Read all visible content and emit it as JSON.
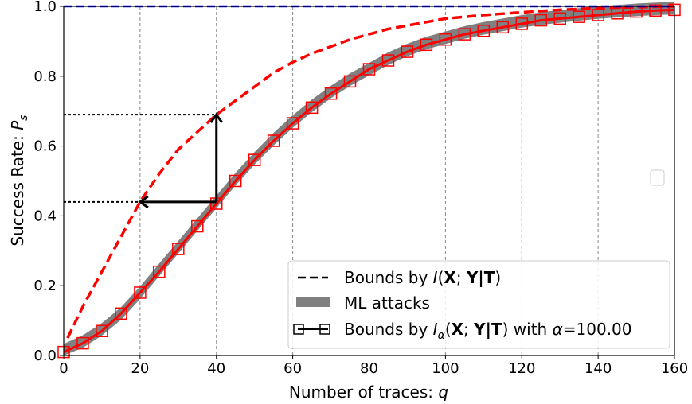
{
  "chart_data": {
    "type": "line",
    "xlabel": "Number of traces:",
    "xlabel_var": "q",
    "ylabel": "Success Rate:",
    "ylabel_var": "P",
    "ylabel_sub": "s",
    "xlim": [
      0,
      160
    ],
    "ylim": [
      0,
      1.0
    ],
    "xticks": [
      "0",
      "20",
      "40",
      "60",
      "80",
      "100",
      "120",
      "140",
      "160"
    ],
    "yticks": [
      "0.0",
      "0.2",
      "0.4",
      "0.6",
      "0.8",
      "1.0"
    ],
    "xtick_values": [
      0,
      20,
      40,
      60,
      80,
      100,
      120,
      140,
      160
    ],
    "ytick_values": [
      0,
      0.2,
      0.4,
      0.6,
      0.8,
      1.0
    ],
    "grid": "vertical dashed",
    "legend_position": "lower-right",
    "colors": {
      "bound_mi": "#ff0000",
      "bound_alpha": "#ff0000",
      "ml_band": "#808080",
      "ceiling": "#0000ff",
      "arrows": "#000000"
    },
    "series": [
      {
        "id": "bound_mi",
        "style": "dashed",
        "x": [
          1,
          5,
          10,
          15,
          20,
          25,
          30,
          35,
          40,
          45,
          50,
          55,
          60,
          65,
          70,
          75,
          80,
          85,
          90,
          95,
          100,
          110,
          120,
          130,
          140,
          150,
          160
        ],
        "y": [
          0.05,
          0.14,
          0.24,
          0.34,
          0.44,
          0.52,
          0.59,
          0.64,
          0.69,
          0.73,
          0.77,
          0.81,
          0.84,
          0.865,
          0.885,
          0.905,
          0.92,
          0.935,
          0.945,
          0.955,
          0.965,
          0.975,
          0.983,
          0.99,
          0.995,
          0.998,
          1.0
        ]
      },
      {
        "id": "ml_attacks",
        "style": "band",
        "x": [
          0,
          5,
          10,
          15,
          20,
          25,
          30,
          35,
          40,
          45,
          50,
          55,
          60,
          65,
          70,
          75,
          80,
          85,
          90,
          95,
          100,
          105,
          110,
          115,
          120,
          125,
          130,
          135,
          140,
          145,
          150,
          155,
          160
        ],
        "y": [
          0.015,
          0.04,
          0.075,
          0.12,
          0.18,
          0.245,
          0.31,
          0.375,
          0.44,
          0.505,
          0.565,
          0.62,
          0.67,
          0.715,
          0.755,
          0.79,
          0.82,
          0.85,
          0.875,
          0.895,
          0.91,
          0.925,
          0.937,
          0.947,
          0.957,
          0.965,
          0.971,
          0.977,
          0.982,
          0.986,
          0.99,
          0.993,
          0.995
        ],
        "spread": 0.018
      },
      {
        "id": "bound_alpha",
        "style": "solid-square-markers",
        "x": [
          0,
          5,
          10,
          15,
          20,
          25,
          30,
          35,
          40,
          45,
          50,
          55,
          60,
          65,
          70,
          75,
          80,
          85,
          90,
          95,
          100,
          105,
          110,
          115,
          120,
          125,
          130,
          135,
          140,
          145,
          150,
          155,
          160
        ],
        "y": [
          0.01,
          0.035,
          0.07,
          0.12,
          0.18,
          0.24,
          0.305,
          0.37,
          0.435,
          0.5,
          0.56,
          0.615,
          0.665,
          0.71,
          0.75,
          0.785,
          0.82,
          0.845,
          0.87,
          0.89,
          0.905,
          0.92,
          0.93,
          0.94,
          0.95,
          0.96,
          0.965,
          0.97,
          0.975,
          0.98,
          0.985,
          0.988,
          0.99
        ]
      },
      {
        "id": "ceiling",
        "style": "dashed",
        "x": [
          0,
          160
        ],
        "y": [
          1.0,
          1.0
        ]
      }
    ],
    "annotations": {
      "arrow_up": {
        "x": 40,
        "y_from": 0.44,
        "y_to": 0.69
      },
      "arrow_left": {
        "y": 0.44,
        "x_from": 40,
        "x_to": 20
      },
      "hline_upper": {
        "y": 0.69,
        "x_from": 0,
        "x_to": 40
      },
      "hline_lower": {
        "y": 0.44,
        "x_from": 0,
        "x_to": 20
      }
    },
    "legend": {
      "bound_mi": {
        "prefix": "Bounds by ",
        "func": "I",
        "open": "(",
        "X": "X",
        "sep": "; ",
        "Y": "Y",
        "bar": "|",
        "T": "T",
        "close": ")"
      },
      "ml_attacks": {
        "label": "ML attacks"
      },
      "bound_alpha": {
        "prefix": "Bounds by ",
        "func": "I",
        "sub": "α",
        "open": "(",
        "X": "X",
        "sep": "; ",
        "Y": "Y",
        "bar": "|",
        "T": "T",
        "close": ")",
        "suffix": " with ",
        "alpha": "α",
        "eq": "=100.00"
      }
    }
  }
}
